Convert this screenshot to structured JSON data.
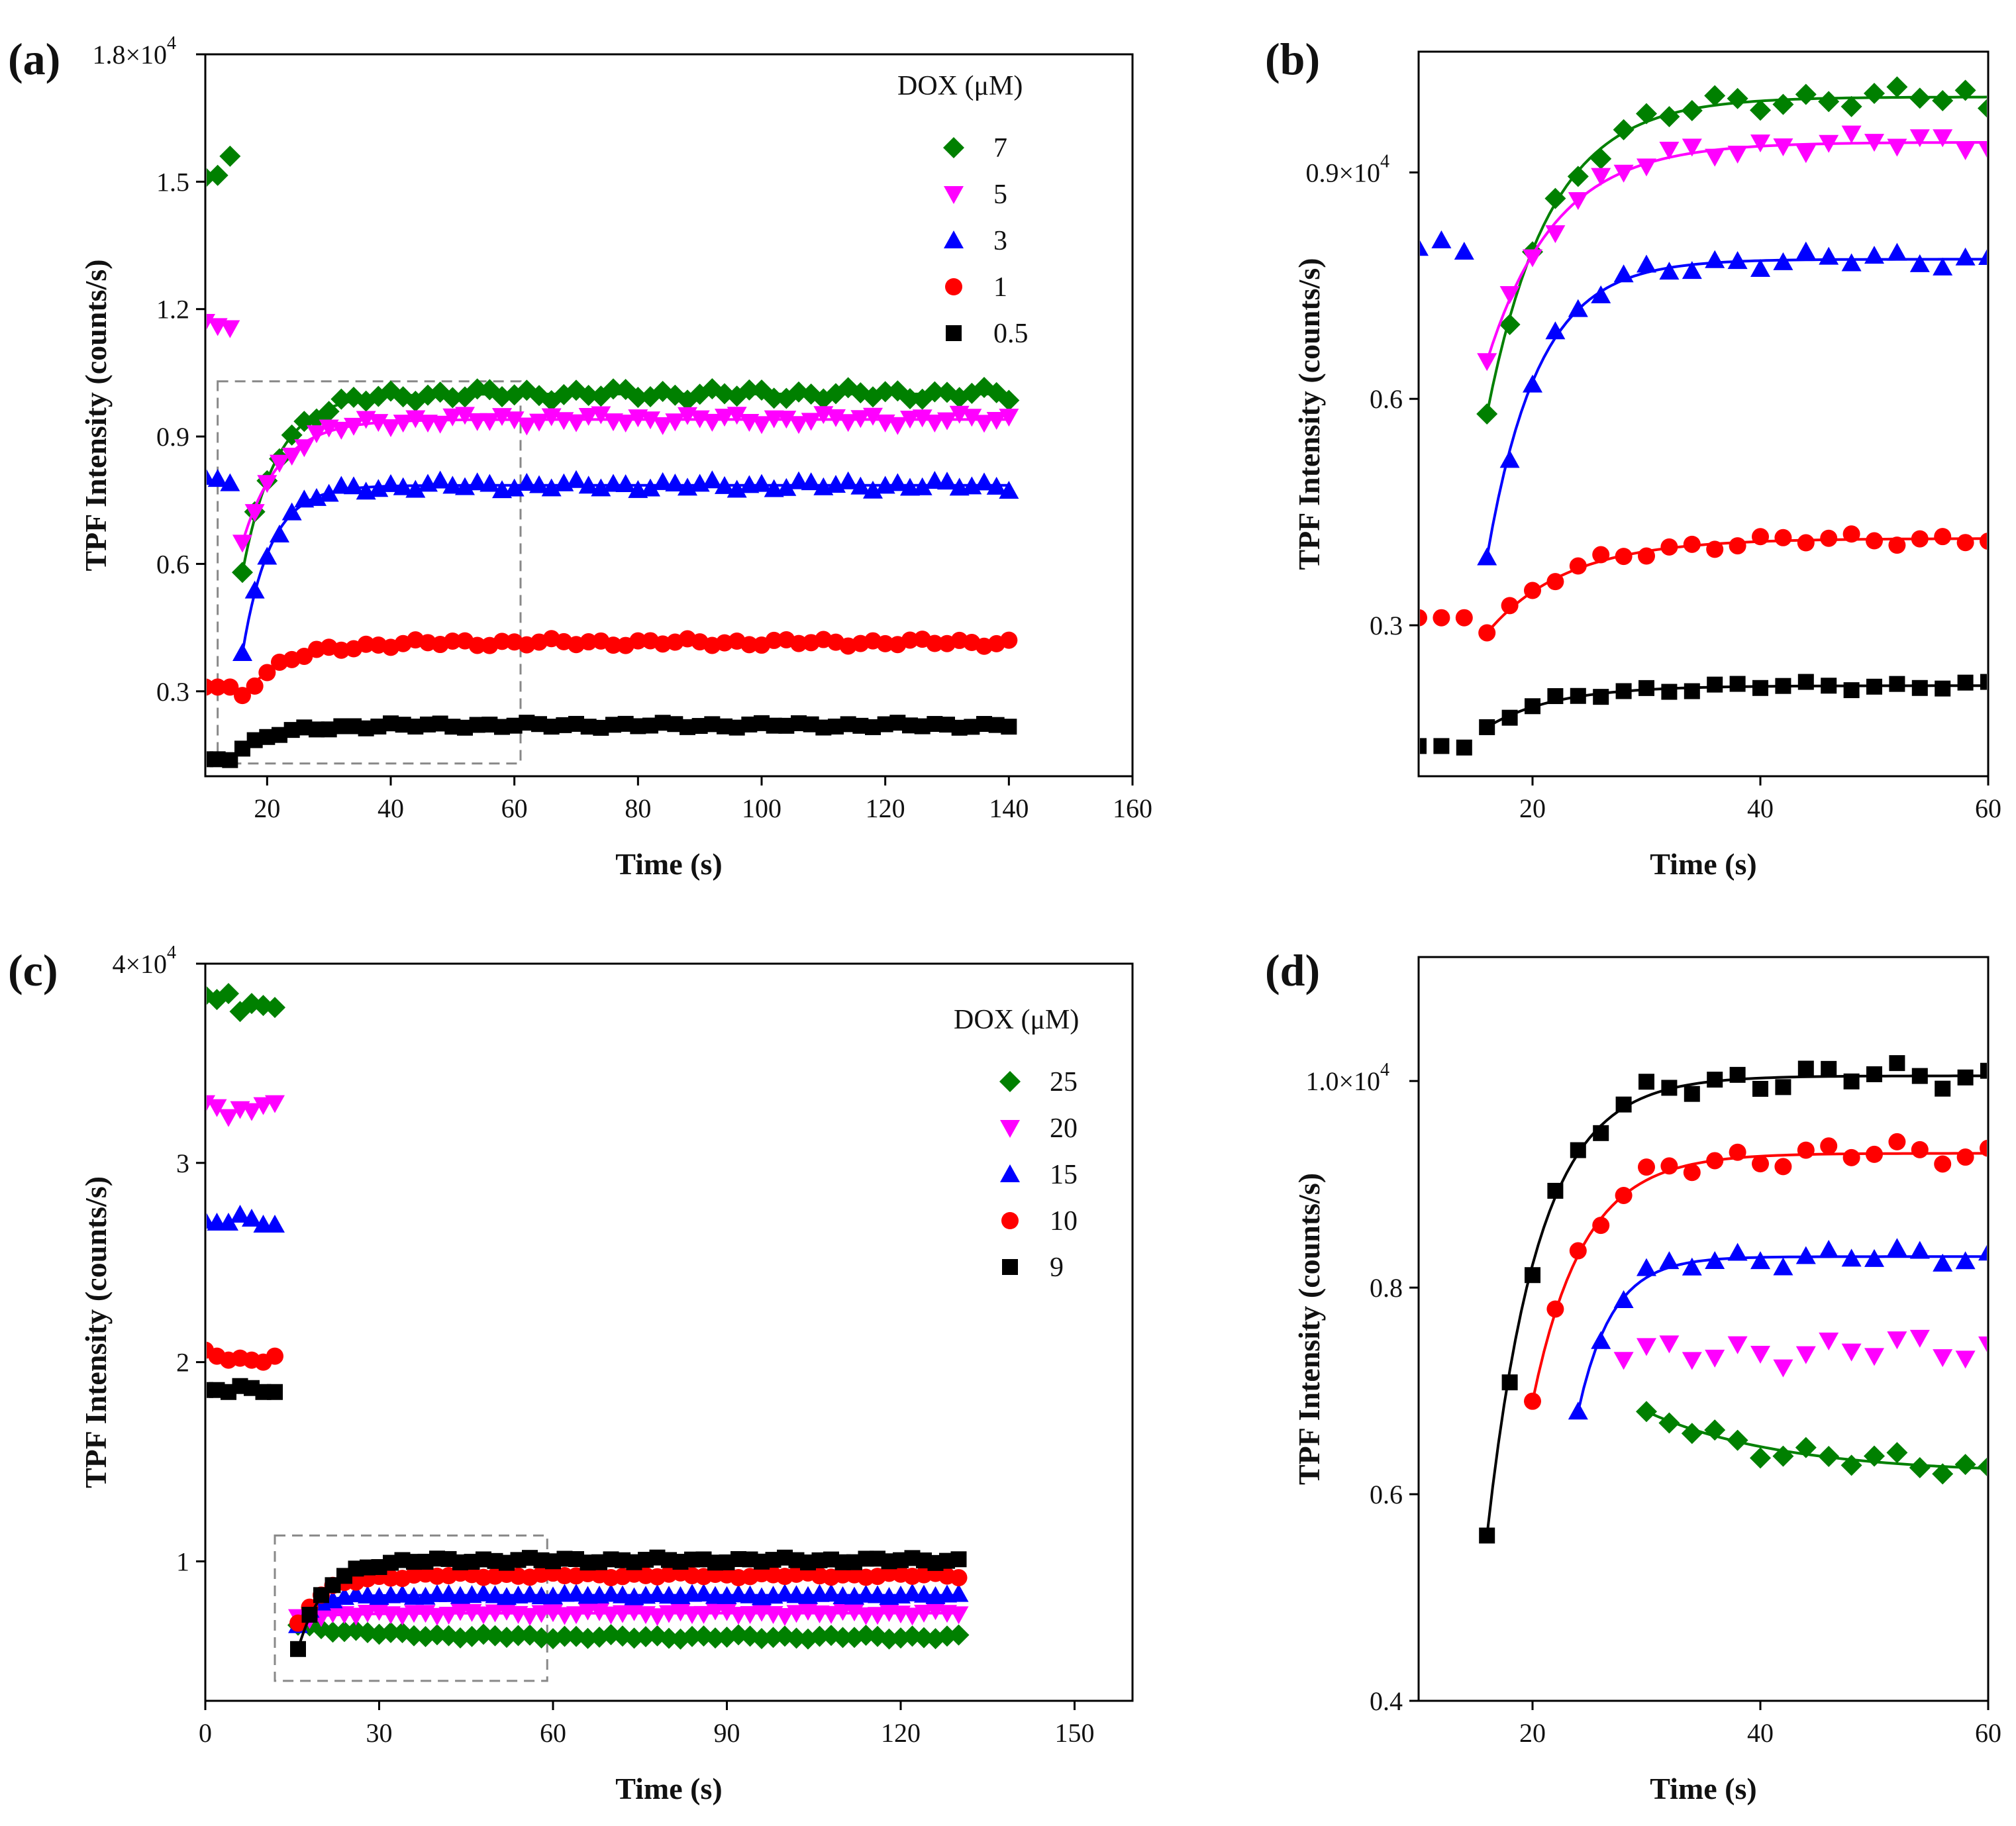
{
  "series_colors": {
    "0.5": "#000000",
    "1": "#ff0000",
    "3": "#0000ff",
    "5": "#ff00ff",
    "7": "#008000",
    "9": "#000000",
    "10": "#ff0000",
    "15": "#0000ff",
    "20": "#ff00ff",
    "25": "#008000"
  },
  "chart_data": [
    {
      "panel": "(a)",
      "type": "scatter",
      "xlabel": "Time (s)",
      "ylabel": "TPF Intensity (counts/s)",
      "xlim": [
        10,
        160
      ],
      "ylim": [
        1000,
        18000
      ],
      "xticks": [
        20,
        40,
        60,
        80,
        100,
        120,
        140,
        160
      ],
      "ytick_values": [
        3000,
        6000,
        9000,
        12000,
        15000,
        18000
      ],
      "ytick_labels": [
        "0.3",
        "0.6",
        "0.9",
        "1.2",
        "1.5",
        "1.8×10"
      ],
      "ytick_exponent": "4",
      "legend_title": "DOX (μM)",
      "legend_position": "top-right",
      "zoom_box": {
        "x": [
          12,
          61
        ],
        "y": [
          1300,
          10300
        ]
      },
      "series": [
        {
          "name": "7",
          "marker": "diamond",
          "pre": [
            [
              10,
              15100
            ],
            [
              12,
              15150
            ],
            [
              14,
              15600
            ]
          ],
          "start": 16,
          "y0": 5800,
          "A": 4200,
          "tau": 5.5,
          "end": 140,
          "jitter": 120,
          "last": 9850
        },
        {
          "name": "5",
          "marker": "triangle-down",
          "pre": [
            [
              10,
              11700
            ],
            [
              12,
              11600
            ],
            [
              14,
              11550
            ]
          ],
          "start": 16,
          "y0": 6500,
          "A": 2900,
          "tau": 6,
          "end": 140,
          "jitter": 110
        },
        {
          "name": "3",
          "marker": "triangle-up",
          "pre": [
            [
              10,
              8050
            ],
            [
              12,
              8000
            ],
            [
              14,
              7900
            ]
          ],
          "start": 16,
          "y0": 3900,
          "A": 3950,
          "tau": 4.5,
          "end": 140,
          "jitter": 100
        },
        {
          "name": "1",
          "marker": "circle",
          "pre": [
            [
              10,
              3100
            ],
            [
              12,
              3100
            ],
            [
              14,
              3100
            ]
          ],
          "start": 16,
          "y0": 2900,
          "A": 1250,
          "tau": 7,
          "end": 140,
          "jitter": 70
        },
        {
          "name": "0.5",
          "marker": "square",
          "pre": [
            [
              10,
              1400
            ],
            [
              12,
              1400
            ],
            [
              14,
              1380
            ]
          ],
          "start": 16,
          "y0": 1650,
          "A": 550,
          "tau": 6,
          "end": 140,
          "jitter": 50
        }
      ]
    },
    {
      "panel": "(b)",
      "type": "scatter",
      "xlabel": "Time (s)",
      "ylabel": "TPF Intensity (counts/s)",
      "xlim": [
        10,
        60
      ],
      "ylim": [
        1000,
        10600
      ],
      "xticks": [
        20,
        40,
        60
      ],
      "ytick_values": [
        3000,
        6000,
        9000
      ],
      "ytick_labels": [
        "0.3",
        "0.6",
        "0.9×10"
      ],
      "ytick_exponent": "4",
      "series": [
        {
          "name": "7",
          "marker": "diamond",
          "pre": [],
          "start": 16,
          "y0": 5800,
          "A": 4200,
          "tau": 5.5,
          "end": 60,
          "jitter": 120,
          "last": 9850
        },
        {
          "name": "5",
          "marker": "triangle-down",
          "pre": [],
          "start": 16,
          "y0": 6500,
          "A": 2900,
          "tau": 6,
          "end": 60,
          "jitter": 110
        },
        {
          "name": "3",
          "marker": "triangle-up",
          "pre": [
            [
              10,
              8000
            ],
            [
              12,
              8100
            ],
            [
              14,
              7950
            ]
          ],
          "start": 16,
          "y0": 3900,
          "A": 3950,
          "tau": 4.5,
          "end": 60,
          "jitter": 100
        },
        {
          "name": "1",
          "marker": "circle",
          "pre": [
            [
              10,
              3100
            ],
            [
              12,
              3100
            ],
            [
              14,
              3100
            ]
          ],
          "start": 16,
          "y0": 2900,
          "A": 1250,
          "tau": 7,
          "end": 60,
          "jitter": 70
        },
        {
          "name": "0.5",
          "marker": "square",
          "pre": [
            [
              10,
              1400
            ],
            [
              12,
              1400
            ],
            [
              14,
              1380
            ]
          ],
          "start": 16,
          "y0": 1650,
          "A": 550,
          "tau": 6,
          "end": 60,
          "jitter": 50
        }
      ]
    },
    {
      "panel": "(c)",
      "type": "scatter",
      "xlabel": "Time (s)",
      "ylabel": "TPF Intensity (counts/s)",
      "xlim": [
        0,
        160
      ],
      "ylim": [
        3000,
        40000
      ],
      "xticks": [
        0,
        30,
        60,
        90,
        120,
        150
      ],
      "ytick_values": [
        10000,
        20000,
        30000,
        40000
      ],
      "ytick_labels": [
        "1",
        "2",
        "3",
        "4×10"
      ],
      "ytick_exponent": "4",
      "legend_title": "DOX (μM)",
      "legend_position": "top-right",
      "zoom_box": {
        "x": [
          12,
          59
        ],
        "y": [
          4000,
          11300
        ]
      },
      "series": [
        {
          "name": "25",
          "marker": "diamond",
          "pre": [
            [
              0,
              38400
            ],
            [
              2,
              38200
            ],
            [
              4,
              38500
            ],
            [
              6,
              37600
            ],
            [
              8,
              38000
            ],
            [
              10,
              37900
            ],
            [
              12,
              37800
            ]
          ],
          "start": 16,
          "y0": 6800,
          "A": -600,
          "tau": 12,
          "end": 130,
          "jitter": 90
        },
        {
          "name": "20",
          "marker": "triangle-down",
          "pre": [
            [
              0,
              33000
            ],
            [
              2,
              32800
            ],
            [
              4,
              32300
            ],
            [
              6,
              32700
            ],
            [
              8,
              32600
            ],
            [
              10,
              32900
            ],
            [
              12,
              33000
            ]
          ],
          "start": 16,
          "y0": 7200,
          "A": 200,
          "tau": 8,
          "end": 130,
          "jitter": 120
        },
        {
          "name": "15",
          "marker": "triangle-up",
          "pre": [
            [
              0,
              27100
            ],
            [
              2,
              27000
            ],
            [
              4,
              27000
            ],
            [
              6,
              27400
            ],
            [
              8,
              27200
            ],
            [
              10,
              26900
            ],
            [
              12,
              26900
            ]
          ],
          "start": 16,
          "y0": 6800,
          "A": 1500,
          "tau": 3,
          "end": 130,
          "jitter": 80
        },
        {
          "name": "10",
          "marker": "circle",
          "pre": [
            [
              0,
              20600
            ],
            [
              2,
              20300
            ],
            [
              4,
              20100
            ],
            [
              6,
              20200
            ],
            [
              8,
              20100
            ],
            [
              10,
              20000
            ],
            [
              12,
              20300
            ]
          ],
          "start": 16,
          "y0": 6900,
          "A": 2400,
          "tau": 4.5,
          "end": 130,
          "jitter": 100
        },
        {
          "name": "9",
          "marker": "square",
          "pre": [
            [
              0,
              18600
            ],
            [
              2,
              18600
            ],
            [
              4,
              18500
            ],
            [
              6,
              18800
            ],
            [
              8,
              18700
            ],
            [
              10,
              18500
            ],
            [
              12,
              18500
            ]
          ],
          "start": 16,
          "y0": 5600,
          "A": 4450,
          "tau": 4.5,
          "end": 130,
          "jitter": 110
        }
      ]
    },
    {
      "panel": "(d)",
      "type": "scatter",
      "xlabel": "Time (s)",
      "ylabel": "TPF Intensity (counts/s)",
      "xlim": [
        10,
        60
      ],
      "ylim": [
        4000,
        11200
      ],
      "xticks": [
        20,
        40,
        60
      ],
      "ytick_values": [
        4000,
        6000,
        8000,
        10000
      ],
      "ytick_labels": [
        "0.4",
        "0.6",
        "0.8",
        "1.0×10"
      ],
      "ytick_exponent": "4",
      "series": [
        {
          "name": "9",
          "marker": "square",
          "pre": [],
          "start": 16,
          "y0": 5600,
          "A": 4450,
          "tau": 4.5,
          "end": 60,
          "jitter": 110
        },
        {
          "name": "10",
          "marker": "circle",
          "pre": [],
          "start": 20,
          "y0": 6900,
          "A": 2400,
          "tau": 4.5,
          "end": 60,
          "jitter": 100
        },
        {
          "name": "15",
          "marker": "triangle-up",
          "pre": [],
          "start": 24,
          "y0": 6800,
          "A": 1500,
          "tau": 3,
          "end": 60,
          "jitter": 80
        },
        {
          "name": "20",
          "marker": "triangle-down",
          "pre": [],
          "start": 28,
          "y0": 7300,
          "A": 100,
          "tau": 8,
          "end": 60,
          "jitter": 120,
          "nofit": true
        },
        {
          "name": "25",
          "marker": "diamond",
          "pre": [],
          "start": 30,
          "y0": 6800,
          "A": -600,
          "tau": 12,
          "end": 60,
          "jitter": 90
        }
      ]
    }
  ]
}
